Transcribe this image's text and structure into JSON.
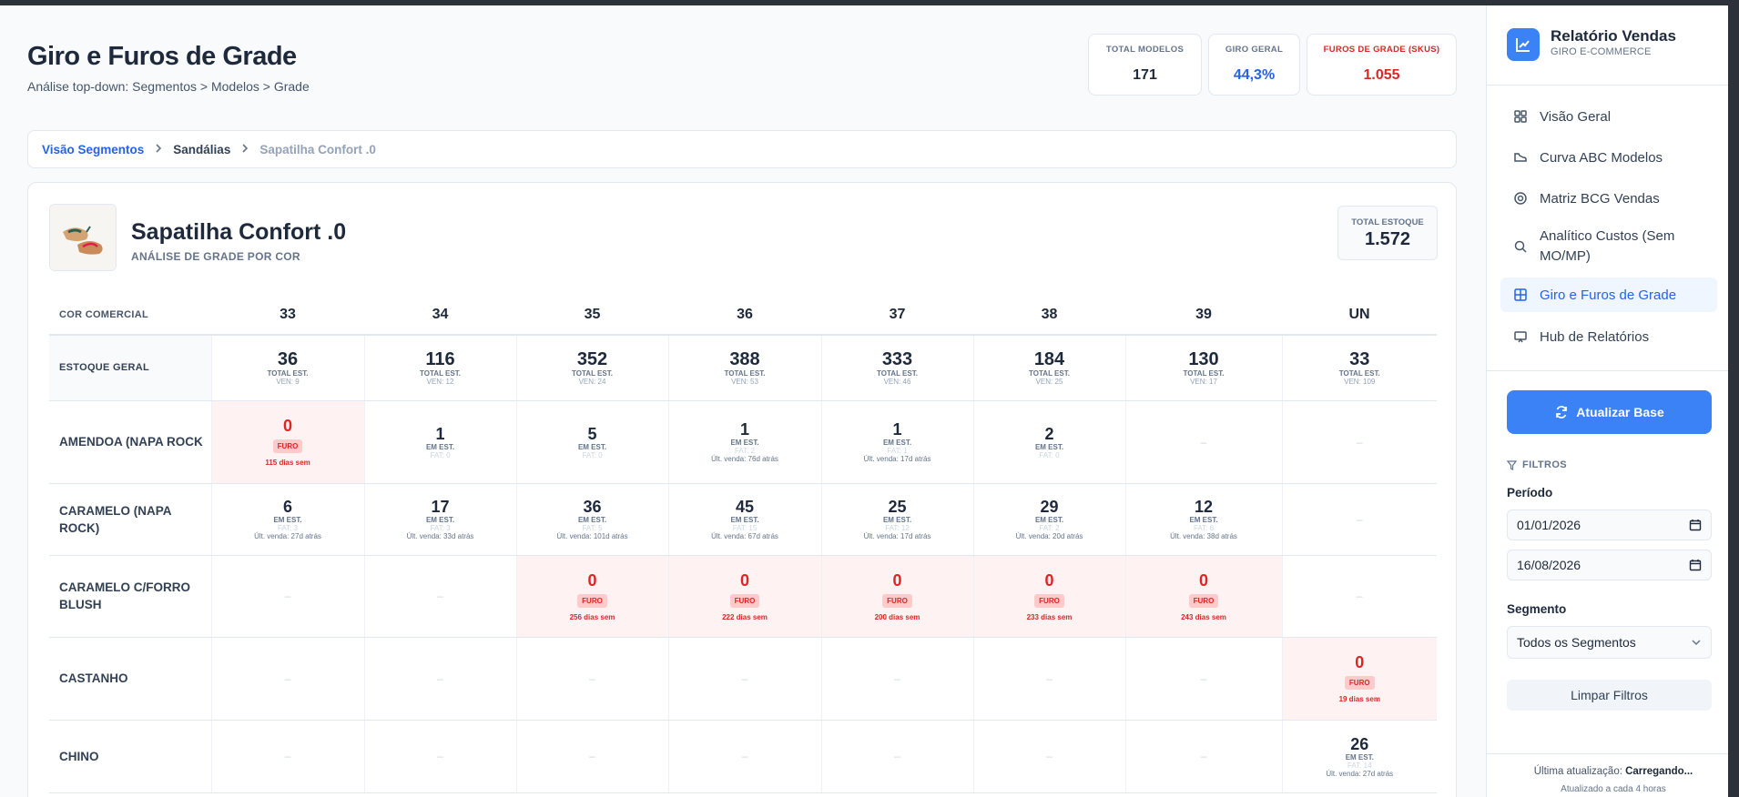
{
  "page": {
    "title": "Giro e Furos de Grade",
    "subtitle": "Análise top-down: Segmentos > Modelos > Grade"
  },
  "kpis": [
    {
      "label": "TOTAL MODELOS",
      "value": "171",
      "color": "#1e293b"
    },
    {
      "label": "GIRO GERAL",
      "value": "44,3%",
      "color": "#2563eb"
    },
    {
      "label": "FUROS DE GRADE (SKUS)",
      "value": "1.055",
      "color": "#dc2626"
    }
  ],
  "breadcrumb": [
    "Visão Segmentos",
    "Sandálias",
    "Sapatilha Confort .0"
  ],
  "product": {
    "name": "Sapatilha Confort .0",
    "subtitle": "ANÁLISE DE GRADE POR COR",
    "total_label": "TOTAL ESTOQUE",
    "total_value": "1.572"
  },
  "grid": {
    "corner_label": "COR COMERCIAL",
    "sizes": [
      "33",
      "34",
      "35",
      "36",
      "37",
      "38",
      "39",
      "UN"
    ],
    "stock": {
      "label": "ESTOQUE GERAL",
      "cells": [
        {
          "n": "36",
          "l1": "TOTAL EST.",
          "l2": "VEN: 9"
        },
        {
          "n": "116",
          "l1": "TOTAL EST.",
          "l2": "VEN: 12"
        },
        {
          "n": "352",
          "l1": "TOTAL EST.",
          "l2": "VEN: 24"
        },
        {
          "n": "388",
          "l1": "TOTAL EST.",
          "l2": "VEN: 53"
        },
        {
          "n": "333",
          "l1": "TOTAL EST.",
          "l2": "VEN: 46"
        },
        {
          "n": "184",
          "l1": "TOTAL EST.",
          "l2": "VEN: 25"
        },
        {
          "n": "130",
          "l1": "TOTAL EST.",
          "l2": "VEN: 17"
        },
        {
          "n": "33",
          "l1": "TOTAL EST.",
          "l2": "VEN: 109"
        }
      ]
    },
    "rows": [
      {
        "label": "AMENDOA (NAPA ROCK",
        "cells": [
          {
            "type": "furo",
            "n": "0",
            "badge": "FURO",
            "dias": "115 dias sem"
          },
          {
            "type": "val",
            "n": "1",
            "em": "EM EST.",
            "fat": "FAT: 0",
            "ult": ""
          },
          {
            "type": "val",
            "n": "5",
            "em": "EM EST.",
            "fat": "FAT: 0",
            "ult": ""
          },
          {
            "type": "val",
            "n": "1",
            "em": "EM EST.",
            "fat": "FAT: 2",
            "ult": "Últ. venda: 76d atrás"
          },
          {
            "type": "val",
            "n": "1",
            "em": "EM EST.",
            "fat": "FAT: 1",
            "ult": "Últ. venda: 17d atrás"
          },
          {
            "type": "val",
            "n": "2",
            "em": "EM EST.",
            "fat": "FAT: 0",
            "ult": ""
          },
          {
            "type": "empty",
            "dash": "–"
          },
          {
            "type": "empty",
            "dash": "–"
          }
        ]
      },
      {
        "label": "CARAMELO (NAPA ROCK)",
        "cells": [
          {
            "type": "val",
            "n": "6",
            "em": "EM EST.",
            "fat": "FAT: 3",
            "ult": "Últ. venda: 27d atrás"
          },
          {
            "type": "val",
            "n": "17",
            "em": "EM EST.",
            "fat": "FAT: 3",
            "ult": "Últ. venda: 33d atrás"
          },
          {
            "type": "val",
            "n": "36",
            "em": "EM EST.",
            "fat": "FAT: 5",
            "ult": "Últ. venda: 101d atrás"
          },
          {
            "type": "val",
            "n": "45",
            "em": "EM EST.",
            "fat": "FAT: 15",
            "ult": "Últ. venda: 67d atrás"
          },
          {
            "type": "val",
            "n": "25",
            "em": "EM EST.",
            "fat": "FAT: 12",
            "ult": "Últ. venda: 17d atrás"
          },
          {
            "type": "val",
            "n": "29",
            "em": "EM EST.",
            "fat": "FAT: 2",
            "ult": "Últ. venda: 20d atrás"
          },
          {
            "type": "val",
            "n": "12",
            "em": "EM EST.",
            "fat": "FAT: 6",
            "ult": "Últ. venda: 38d atrás"
          },
          {
            "type": "empty",
            "dash": "–"
          }
        ]
      },
      {
        "label": "CARAMELO C/FORRO BLUSH",
        "cells": [
          {
            "type": "empty",
            "dash": "–"
          },
          {
            "type": "empty",
            "dash": "–"
          },
          {
            "type": "furo",
            "n": "0",
            "badge": "FURO",
            "dias": "256 dias sem"
          },
          {
            "type": "furo",
            "n": "0",
            "badge": "FURO",
            "dias": "222 dias sem"
          },
          {
            "type": "furo",
            "n": "0",
            "badge": "FURO",
            "dias": "200 dias sem"
          },
          {
            "type": "furo",
            "n": "0",
            "badge": "FURO",
            "dias": "233 dias sem"
          },
          {
            "type": "furo",
            "n": "0",
            "badge": "FURO",
            "dias": "243 dias sem"
          },
          {
            "type": "empty",
            "dash": "–"
          }
        ]
      },
      {
        "label": "CASTANHO",
        "cells": [
          {
            "type": "empty",
            "dash": "–"
          },
          {
            "type": "empty",
            "dash": "–"
          },
          {
            "type": "empty",
            "dash": "–"
          },
          {
            "type": "empty",
            "dash": "–"
          },
          {
            "type": "empty",
            "dash": "–"
          },
          {
            "type": "empty",
            "dash": "–"
          },
          {
            "type": "empty",
            "dash": "–"
          },
          {
            "type": "furo",
            "n": "0",
            "badge": "FURO",
            "dias": "19 dias sem"
          }
        ]
      },
      {
        "label": "CHINO",
        "cells": [
          {
            "type": "empty",
            "dash": "–"
          },
          {
            "type": "empty",
            "dash": "–"
          },
          {
            "type": "empty",
            "dash": "–"
          },
          {
            "type": "empty",
            "dash": "–"
          },
          {
            "type": "empty",
            "dash": "–"
          },
          {
            "type": "empty",
            "dash": "–"
          },
          {
            "type": "empty",
            "dash": "–"
          },
          {
            "type": "val",
            "n": "26",
            "em": "EM EST.",
            "fat": "FAT: 14",
            "ult": "Últ. venda: 27d atrás"
          }
        ]
      }
    ]
  },
  "sidebar": {
    "brand_title": "Relatório Vendas",
    "brand_subtitle": "GIRO E-COMMERCE",
    "nav": [
      {
        "label": "Visão Geral",
        "icon": "grid-icon"
      },
      {
        "label": "Curva ABC Modelos",
        "icon": "shoe-icon"
      },
      {
        "label": "Matriz BCG Vendas",
        "icon": "target-icon"
      },
      {
        "label": "Analítico Custos (Sem MO/MP)",
        "icon": "search-icon"
      },
      {
        "label": "Giro e Furos de Grade",
        "icon": "table-icon",
        "active": true
      },
      {
        "label": "Hub de Relatórios",
        "icon": "presentation-icon"
      }
    ],
    "update_button": "Atualizar Base",
    "filters_title": "FILTROS",
    "period_label": "Período",
    "date_from": "01/01/2026",
    "date_to": "16/08/2026",
    "segment_label": "Segmento",
    "segment_value": "Todos os Segmentos",
    "clear_button": "Limpar Filtros",
    "last_update_label": "Última atualização:",
    "last_update_value": "Carregando...",
    "update_note": "Atualizado a cada 4 horas",
    "accent": "#3b82f6"
  }
}
